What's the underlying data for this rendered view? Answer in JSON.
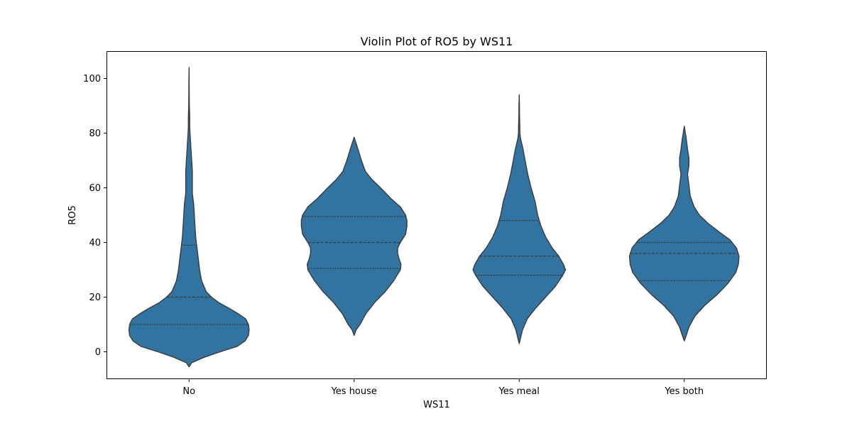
{
  "chart_data": {
    "type": "violin",
    "title": "Violin Plot of RO5 by WS11",
    "xlabel": "WS11",
    "ylabel": "RO5",
    "categories": [
      "No",
      "Yes house",
      "Yes meal",
      "Yes both"
    ],
    "ylim": [
      -10,
      110
    ],
    "yticks": [
      0,
      20,
      40,
      60,
      80,
      100
    ],
    "grid": false,
    "color": "#3274a1",
    "edge_color": "#3a3a3a",
    "violins": [
      {
        "category": "No",
        "min": -5.5,
        "max": 104,
        "quartiles": [
          10,
          20,
          39
        ],
        "density": [
          [
            -5.5,
            0
          ],
          [
            -4,
            0.04
          ],
          [
            -2,
            0.23
          ],
          [
            0,
            0.47
          ],
          [
            2,
            0.73
          ],
          [
            4,
            0.85
          ],
          [
            6,
            0.9
          ],
          [
            8,
            0.91
          ],
          [
            10,
            0.9
          ],
          [
            12,
            0.86
          ],
          [
            14,
            0.74
          ],
          [
            16,
            0.6
          ],
          [
            18,
            0.45
          ],
          [
            20,
            0.34
          ],
          [
            22,
            0.26
          ],
          [
            26,
            0.19
          ],
          [
            30,
            0.16
          ],
          [
            34,
            0.14
          ],
          [
            38,
            0.12
          ],
          [
            42,
            0.1
          ],
          [
            46,
            0.09
          ],
          [
            50,
            0.08
          ],
          [
            54,
            0.07
          ],
          [
            58,
            0.05
          ],
          [
            62,
            0.05
          ],
          [
            66,
            0.05
          ],
          [
            70,
            0.04
          ],
          [
            74,
            0.03
          ],
          [
            78,
            0.02
          ],
          [
            82,
            0.01
          ],
          [
            86,
            0.01
          ],
          [
            90,
            0.005
          ],
          [
            95,
            0.003
          ],
          [
            100,
            0.002
          ],
          [
            104,
            0
          ]
        ]
      },
      {
        "category": "Yes house",
        "min": 6,
        "max": 78.5,
        "quartiles": [
          30.5,
          40,
          49.5
        ],
        "density": [
          [
            6,
            0
          ],
          [
            8,
            0.03
          ],
          [
            10,
            0.09
          ],
          [
            14,
            0.18
          ],
          [
            18,
            0.31
          ],
          [
            22,
            0.47
          ],
          [
            26,
            0.6
          ],
          [
            30,
            0.7
          ],
          [
            32,
            0.71
          ],
          [
            34,
            0.68
          ],
          [
            36,
            0.66
          ],
          [
            38,
            0.66
          ],
          [
            40,
            0.7
          ],
          [
            43,
            0.78
          ],
          [
            46,
            0.8
          ],
          [
            48,
            0.8
          ],
          [
            50,
            0.78
          ],
          [
            53,
            0.7
          ],
          [
            56,
            0.56
          ],
          [
            60,
            0.4
          ],
          [
            63,
            0.27
          ],
          [
            66,
            0.17
          ],
          [
            70,
            0.11
          ],
          [
            74,
            0.06
          ],
          [
            78.5,
            0
          ]
        ]
      },
      {
        "category": "Yes meal",
        "min": 3,
        "max": 94,
        "quartiles": [
          28,
          35,
          48
        ],
        "density": [
          [
            3,
            0
          ],
          [
            5,
            0.02
          ],
          [
            8,
            0.05
          ],
          [
            12,
            0.12
          ],
          [
            16,
            0.25
          ],
          [
            20,
            0.4
          ],
          [
            24,
            0.55
          ],
          [
            28,
            0.66
          ],
          [
            30,
            0.7
          ],
          [
            32,
            0.67
          ],
          [
            35,
            0.6
          ],
          [
            38,
            0.5
          ],
          [
            42,
            0.4
          ],
          [
            46,
            0.33
          ],
          [
            50,
            0.28
          ],
          [
            55,
            0.24
          ],
          [
            60,
            0.18
          ],
          [
            65,
            0.13
          ],
          [
            70,
            0.09
          ],
          [
            74,
            0.06
          ],
          [
            78,
            0.02
          ],
          [
            80,
            0.01
          ],
          [
            82,
            0.01
          ],
          [
            86,
            0.005
          ],
          [
            90,
            0.004
          ],
          [
            94,
            0
          ]
        ]
      },
      {
        "category": "Yes both",
        "min": 4,
        "max": 82.5,
        "quartiles": [
          26,
          36,
          40
        ],
        "density": [
          [
            4,
            0
          ],
          [
            6,
            0.03
          ],
          [
            9,
            0.07
          ],
          [
            13,
            0.16
          ],
          [
            17,
            0.31
          ],
          [
            21,
            0.5
          ],
          [
            25,
            0.66
          ],
          [
            29,
            0.78
          ],
          [
            32,
            0.82
          ],
          [
            35,
            0.83
          ],
          [
            38,
            0.79
          ],
          [
            41,
            0.69
          ],
          [
            44,
            0.52
          ],
          [
            47,
            0.36
          ],
          [
            50,
            0.23
          ],
          [
            53,
            0.15
          ],
          [
            57,
            0.09
          ],
          [
            61,
            0.07
          ],
          [
            65,
            0.05
          ],
          [
            68,
            0.07
          ],
          [
            71,
            0.07
          ],
          [
            74,
            0.05
          ],
          [
            78,
            0.03
          ],
          [
            82.5,
            0
          ]
        ]
      }
    ]
  }
}
